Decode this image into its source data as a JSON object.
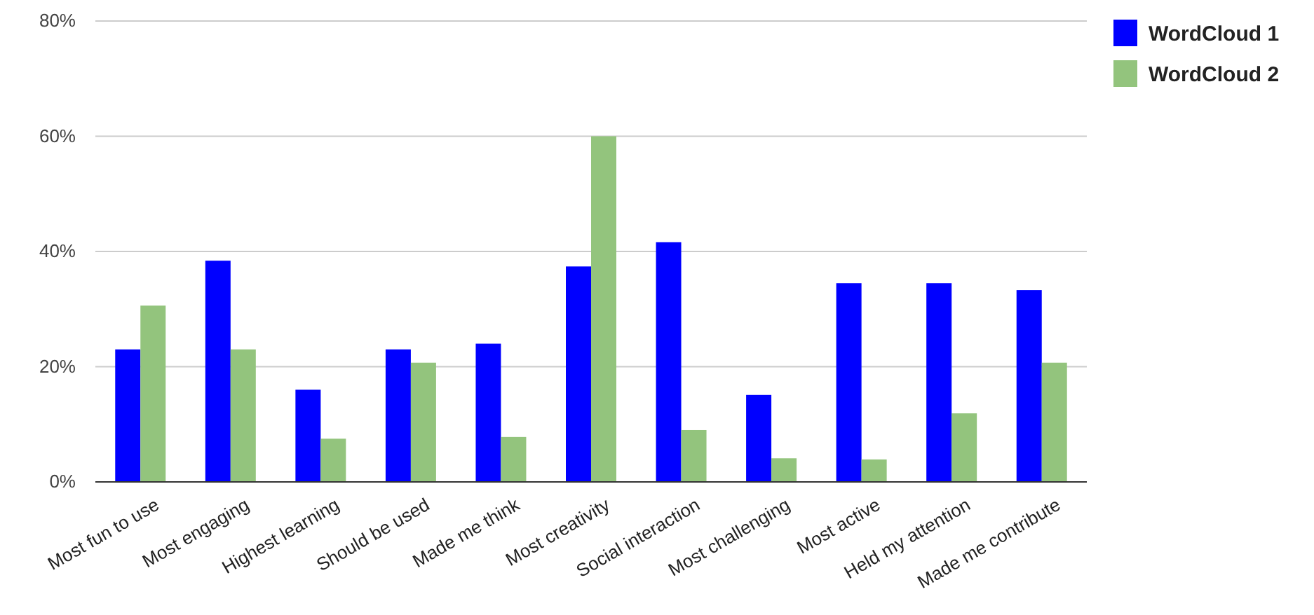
{
  "chart_data": {
    "type": "bar",
    "categories": [
      "Most fun to use",
      "Most engaging",
      "Highest learning",
      "Should be used",
      "Made me think",
      "Most creativity",
      "Social interaction",
      "Most challenging",
      "Most active",
      "Held my attention",
      "Made me contribute"
    ],
    "series": [
      {
        "name": "WordCloud 1",
        "color": "#0000ff",
        "values": [
          23,
          38.4,
          16,
          23,
          24,
          37.4,
          41.6,
          15.1,
          34.5,
          34.5,
          33.3
        ]
      },
      {
        "name": "WordCloud 2",
        "color": "#93c47d",
        "values": [
          30.6,
          23,
          7.5,
          20.7,
          7.8,
          60,
          9,
          4.1,
          3.9,
          11.9,
          20.7
        ]
      }
    ],
    "ylim": [
      0,
      80
    ],
    "yticks": [
      {
        "value": 0,
        "label": "0%"
      },
      {
        "value": 20,
        "label": "20%"
      },
      {
        "value": 40,
        "label": "40%"
      },
      {
        "value": 60,
        "label": "60%"
      },
      {
        "value": 80,
        "label": "80%"
      }
    ],
    "grid": "y",
    "legend": "top right"
  }
}
